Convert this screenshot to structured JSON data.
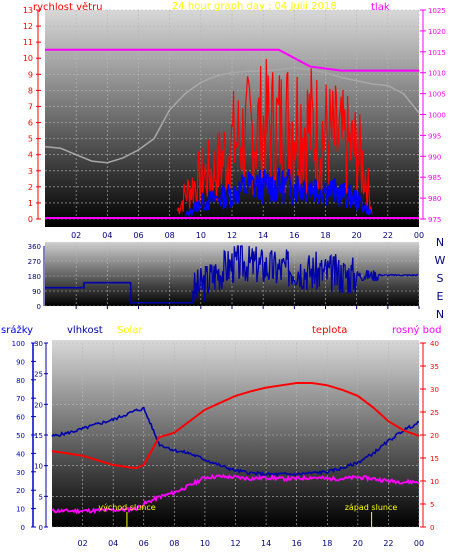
{
  "colors": {
    "background": "#ffffff",
    "panel_top": "#d2d2d2",
    "panel_bottom": "#000000",
    "grid": "#bfbfbf",
    "wind": "#ff0000",
    "wind_gust": "#0000ff",
    "pressure": "#ff00ff",
    "temp": "#ff0000",
    "humidity": "#0000aa",
    "dew": "#ff00ff",
    "rain": "#0000cc",
    "solar": "#ffff00",
    "label_red": "#ff0000",
    "label_blue": "#0000ff",
    "label_magenta": "#ff00ff",
    "label_yellow": "#ffff00",
    "axis_dark": "#000080"
  },
  "header": {
    "title": "24 hour graph day : 04 Julii 2018",
    "left_label": "rychlost větru",
    "right_label": "tlak"
  },
  "compass_labels": [
    "N",
    "W",
    "S",
    "E",
    "N"
  ],
  "lower_labels": {
    "rain": "srážky",
    "humidity": "vlhkost",
    "solar": "Solar",
    "temp": "teplota",
    "dew": "rosný bod"
  },
  "annotations": {
    "sunrise": "východ slunce",
    "sunset": "západ slunce"
  },
  "chart_data": [
    {
      "type": "line",
      "name": "wind-pressure",
      "x_ticks": [
        "02",
        "04",
        "06",
        "08",
        "10",
        "12",
        "14",
        "16",
        "18",
        "20",
        "22",
        "00"
      ],
      "y_left": {
        "ticks": [
          "0",
          "1",
          "2",
          "3",
          "4",
          "5",
          "6",
          "7",
          "8",
          "9",
          "10",
          "11",
          "12",
          "13"
        ],
        "range": [
          0,
          13
        ]
      },
      "y_right": {
        "ticks": [
          "975",
          "980",
          "985",
          "990",
          "995",
          "1000",
          "1005",
          "1010",
          "1015",
          "1020",
          "1025"
        ],
        "range": [
          975,
          1025
        ]
      },
      "pressure_line": {
        "x": [
          0,
          9,
          15,
          17,
          19,
          24
        ],
        "y": [
          1015.5,
          1015.5,
          1015.5,
          1011.5,
          1010.5,
          1010.5
        ]
      },
      "baseline_line": {
        "x": [
          0,
          24
        ],
        "y": [
          0,
          0
        ]
      },
      "temp_grey_line": {
        "x": [
          0,
          1,
          2,
          3,
          4,
          5,
          6,
          7,
          8,
          9,
          10,
          11,
          12,
          13,
          14,
          15,
          16,
          17,
          18,
          19,
          20,
          21,
          22,
          23,
          24
        ],
        "y": [
          4.5,
          4.4,
          4,
          3.6,
          3.5,
          3.8,
          4.3,
          5,
          6.8,
          7.8,
          8.5,
          8.9,
          9.1,
          9.2,
          9.2,
          9.3,
          9.4,
          9.3,
          9.1,
          8.8,
          8.6,
          8.4,
          8.3,
          7.8,
          6.6
        ]
      },
      "wind_gust_envelope": {
        "x": [
          8.5,
          9,
          10,
          11,
          12,
          13,
          14,
          15,
          16,
          17,
          18,
          19,
          20,
          20.5,
          21
        ],
        "y": [
          0.5,
          1.5,
          2.5,
          3.0,
          4.5,
          5.0,
          5.5,
          5.5,
          6.0,
          5.5,
          5.0,
          4.5,
          4.0,
          3.0,
          0.5
        ]
      },
      "wind_avg_envelope": {
        "x": [
          9,
          10,
          11,
          12,
          13,
          14,
          15,
          16,
          17,
          18,
          19,
          20,
          21
        ],
        "y": [
          0.2,
          1.0,
          1.2,
          1.5,
          2.0,
          2.0,
          2.0,
          2.0,
          2.0,
          1.8,
          1.5,
          1.2,
          0.3
        ]
      },
      "xlabel": "",
      "ylabel": ""
    },
    {
      "type": "line",
      "name": "wind-direction",
      "x_ticks": [
        "02",
        "04",
        "06",
        "08",
        "10",
        "12",
        "14",
        "16",
        "18",
        "20",
        "22",
        "00"
      ],
      "y_ticks": [
        "0",
        "90",
        "180",
        "270",
        "360"
      ],
      "range": [
        0,
        360
      ],
      "series": [
        {
          "x": [
            0,
            0.3,
            2.5,
            2.5,
            5.5,
            5.5,
            9.5,
            9.5,
            10,
            11,
            12,
            13,
            14,
            15,
            16,
            17,
            18,
            19,
            20,
            21,
            24
          ],
          "y": [
            110,
            110,
            110,
            140,
            140,
            20,
            20,
            90,
            120,
            200,
            250,
            260,
            240,
            220,
            230,
            210,
            200,
            190,
            185,
            185,
            185
          ]
        }
      ]
    },
    {
      "type": "line",
      "name": "climate",
      "x_ticks": [
        "02",
        "04",
        "06",
        "08",
        "10",
        "12",
        "14",
        "16",
        "18",
        "20",
        "22",
        "00"
      ],
      "y_left_rain": {
        "ticks": [
          "0",
          "10",
          "20",
          "30",
          "40",
          "50",
          "60",
          "70",
          "80",
          "90",
          "100"
        ],
        "range": [
          0,
          100
        ]
      },
      "y_left_hum": {
        "ticks": [
          "0",
          "5",
          "10",
          "15",
          "20",
          "25",
          "30"
        ],
        "range": [
          0,
          30
        ]
      },
      "y_right": {
        "ticks": [
          "0",
          "5",
          "10",
          "15",
          "20",
          "25",
          "30",
          "35",
          "40"
        ],
        "range": [
          0,
          40
        ]
      },
      "temp": {
        "x": [
          0,
          1,
          2,
          3,
          4,
          5,
          5.5,
          6,
          6.5,
          7,
          8,
          9,
          10,
          11,
          12,
          13,
          14,
          15,
          16,
          17,
          18,
          19,
          20,
          21,
          22,
          23,
          24
        ],
        "y": [
          16.5,
          16,
          15.5,
          14.5,
          13.5,
          13.0,
          12.8,
          13.5,
          16.5,
          19.5,
          20.5,
          23.0,
          25.5,
          27.0,
          28.5,
          29.5,
          30.3,
          30.8,
          31.3,
          31.3,
          30.8,
          29.8,
          28.5,
          26.0,
          23.0,
          21.0,
          19.8
        ]
      },
      "humidity": {
        "x": [
          0,
          1,
          2,
          3,
          4,
          5,
          5.5,
          6,
          6.5,
          7,
          8,
          9,
          10,
          11,
          12,
          13,
          14,
          15,
          16,
          17,
          18,
          19,
          20,
          21,
          22,
          23,
          24
        ],
        "y": [
          14.8,
          15.3,
          16.0,
          16.8,
          17.5,
          18.5,
          19.0,
          19.3,
          16.5,
          13.5,
          12.5,
          12.0,
          11.0,
          10.0,
          9.2,
          8.8,
          8.6,
          8.6,
          8.6,
          8.8,
          9.0,
          9.6,
          10.5,
          12.0,
          14.0,
          15.8,
          17.0
        ]
      },
      "dew": {
        "x": [
          0,
          1,
          2,
          3,
          4,
          5,
          5.5,
          6,
          7,
          8,
          9,
          10,
          11,
          12,
          13,
          14,
          15,
          16,
          17,
          18,
          19,
          20,
          21,
          22,
          23,
          24
        ],
        "y": [
          3.5,
          3.5,
          3.5,
          3.6,
          3.7,
          3.8,
          4.0,
          5.0,
          6.5,
          7.5,
          9.0,
          10.8,
          11.0,
          10.8,
          10.5,
          10.8,
          10.5,
          10.5,
          10.8,
          10.5,
          10.5,
          10.8,
          10.5,
          10.0,
          9.8,
          9.8
        ]
      },
      "sunrise_hour": 4.9,
      "sunset_hour": 20.9
    }
  ]
}
